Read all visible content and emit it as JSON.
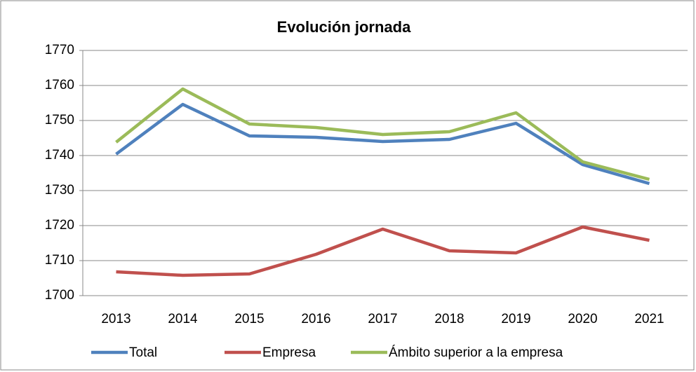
{
  "chart_data": {
    "type": "line",
    "title": "Evolución jornada",
    "categories": [
      "2013",
      "2014",
      "2015",
      "2016",
      "2017",
      "2018",
      "2019",
      "2020",
      "2021"
    ],
    "series": [
      {
        "name": "Total",
        "color": "#4f81bd",
        "values": [
          1740.4,
          1754.6,
          1745.6,
          1745.2,
          1744.0,
          1744.6,
          1749.2,
          1737.4,
          1732.0
        ]
      },
      {
        "name": "Empresa",
        "color": "#c0504d",
        "values": [
          1706.8,
          1705.8,
          1706.2,
          1711.8,
          1719.0,
          1712.8,
          1712.2,
          1719.6,
          1715.8
        ]
      },
      {
        "name": "Ámbito superior a la empresa",
        "color": "#9bbb59",
        "values": [
          1743.8,
          1759.0,
          1749.0,
          1748.0,
          1746.0,
          1746.8,
          1752.2,
          1738.2,
          1733.2
        ]
      }
    ],
    "ylim": [
      1700,
      1770
    ],
    "yticks": [
      1700,
      1710,
      1720,
      1730,
      1740,
      1750,
      1760,
      1770
    ],
    "grid": true,
    "legend": "bottom"
  }
}
